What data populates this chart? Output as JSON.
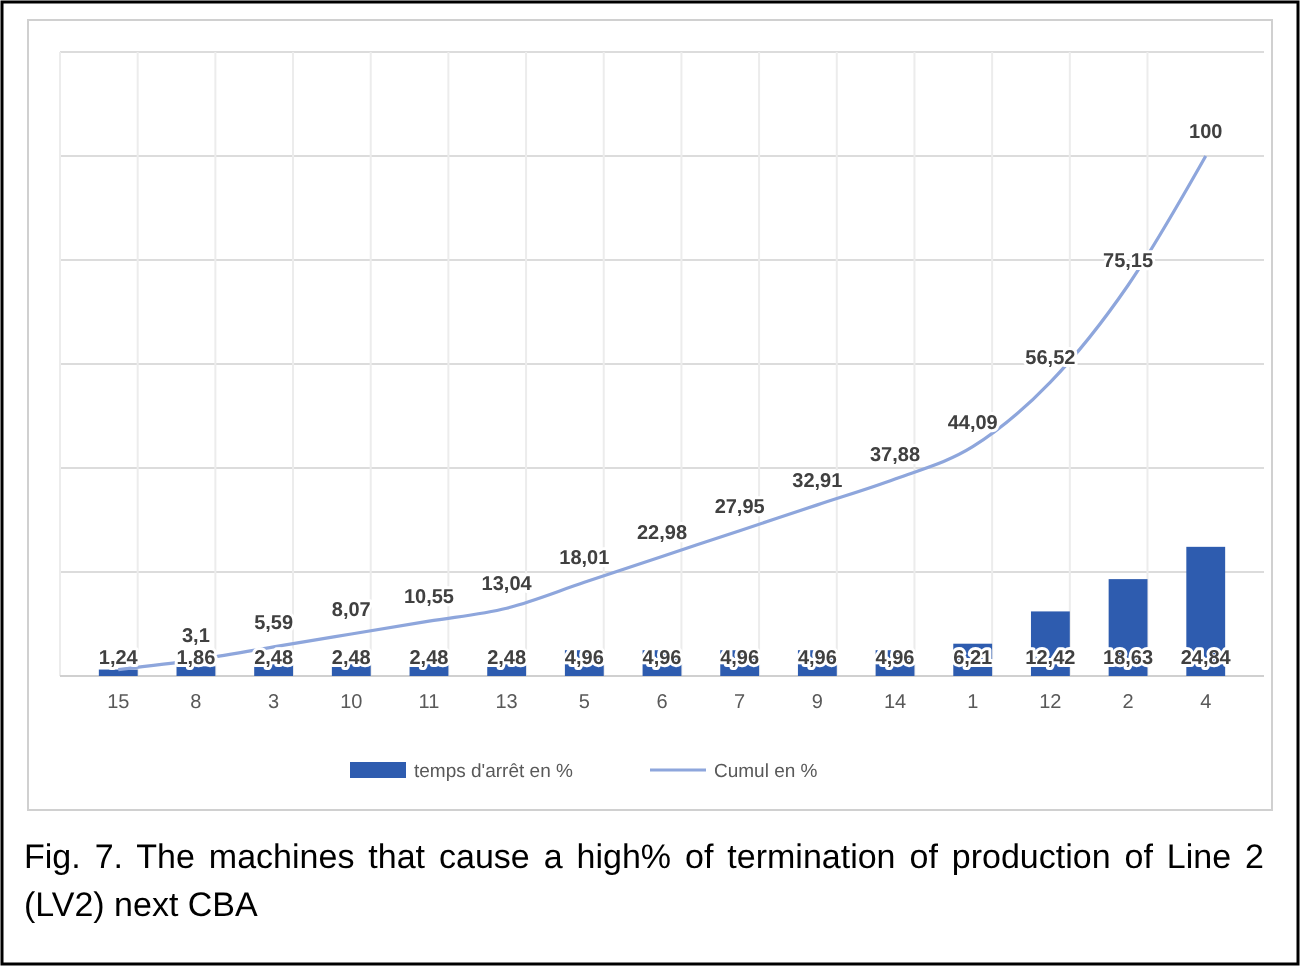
{
  "chart_data": {
    "type": "bar",
    "categories": [
      "15",
      "8",
      "3",
      "10",
      "11",
      "13",
      "5",
      "6",
      "7",
      "9",
      "14",
      "1",
      "12",
      "2",
      "4"
    ],
    "series": [
      {
        "name": "temps d'arrêt en %",
        "color": "#2e5caf",
        "values": [
          1.24,
          1.86,
          2.48,
          2.48,
          2.48,
          2.48,
          4.96,
          4.96,
          4.96,
          4.96,
          4.96,
          6.21,
          12.42,
          18.63,
          24.84
        ],
        "value_labels": [
          "1,24",
          "1,86",
          "2,48",
          "2,48",
          "2,48",
          "2,48",
          "4,96",
          "4,96",
          "4,96",
          "4,96",
          "4,96",
          "6,21",
          "12,42",
          "18,63",
          "24,84"
        ]
      },
      {
        "name": "Cumul en %",
        "type": "line",
        "color": "#8ea6dc",
        "values": [
          1.24,
          3.1,
          5.59,
          8.07,
          10.55,
          13.04,
          18.01,
          22.98,
          27.95,
          32.91,
          37.88,
          44.09,
          56.52,
          75.15,
          100
        ],
        "value_labels": [
          null,
          "3,1",
          "5,59",
          "8,07",
          "10,55",
          "13,04",
          "18,01",
          "22,98",
          "27,95",
          "32,91",
          "37,88",
          "44,09",
          "56,52",
          "75,15",
          "100"
        ]
      }
    ],
    "ylim": [
      0,
      120
    ],
    "yticks": [
      {
        "value": 0,
        "label": null
      },
      {
        "value": 20,
        "label": null
      },
      {
        "value": 40,
        "label": null
      },
      {
        "value": 60,
        "label": null
      },
      {
        "value": 80,
        "label": null
      },
      {
        "value": 100,
        "label": null
      },
      {
        "value": 120,
        "label": null
      }
    ],
    "tick_labels": "x",
    "grid": true,
    "legend": "bottom",
    "marker": "none",
    "annotations": [
      "Fig. 7. The machines that cause a high% of termination of production of Line 2 (LV2) next CBA"
    ]
  }
}
